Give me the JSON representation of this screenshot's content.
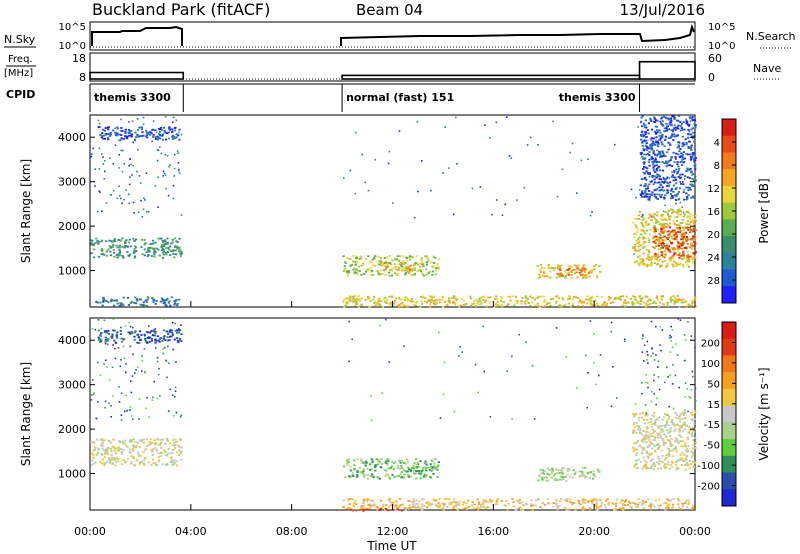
{
  "header": {
    "title": "Buckland Park (fitACF)",
    "beam": "Beam 04",
    "date": "13/Jul/2016"
  },
  "param_panels": {
    "nsky_label": "N.Sky",
    "nsearch_label": "N.Search",
    "nsky_ticks": [
      "10^5",
      "10^0"
    ],
    "freq_label_1": "Freq.",
    "freq_label_2": "[MHz]",
    "freq_ticks": [
      "18",
      "8"
    ],
    "nave_label": "Nave",
    "nave_ticks": [
      "60",
      "0"
    ],
    "cpid_label": "CPID",
    "cpid_segments": [
      {
        "start": 0.0,
        "end": 3.7,
        "name": "themis 3300"
      },
      {
        "start": 10.0,
        "end": 21.8,
        "name": "normal (fast) 151"
      },
      {
        "start": 21.8,
        "end": 24.0,
        "name": "themis 3300"
      }
    ],
    "freq_segments": [
      {
        "start": 0.0,
        "end": 3.7,
        "value": 10.7
      },
      {
        "start": 10.0,
        "end": 21.8,
        "value": 9.5
      },
      {
        "start": 21.8,
        "end": 24.0,
        "value": 15.2
      }
    ]
  },
  "chart_data": [
    {
      "type": "heatmap",
      "name": "power",
      "xlabel": "",
      "ylabel": "Slant Range [km]",
      "xlim": [
        0,
        24
      ],
      "ylim": [
        180,
        4500
      ],
      "yticks": [
        1000,
        2000,
        3000,
        4000
      ],
      "colorbar": {
        "label": "Power [dB]",
        "range": [
          0,
          32
        ],
        "ticks": [
          "4",
          "8",
          "12",
          "16",
          "20",
          "24",
          "28"
        ],
        "colors": [
          "#1e1eff",
          "#1e5ad2",
          "#2f7f9e",
          "#3d8c6a",
          "#5aae4f",
          "#9ccb3a",
          "#e8d63c",
          "#f5a623",
          "#f07a1c",
          "#e84a18",
          "#d81e14"
        ]
      },
      "blobs": [
        {
          "t0": 0.0,
          "t1": 3.6,
          "r0": 1300,
          "r1": 1750,
          "c": 3
        },
        {
          "t0": 0.3,
          "t1": 3.6,
          "r0": 3950,
          "r1": 4250,
          "c": 1
        },
        {
          "t0": 0.2,
          "t1": 3.6,
          "r0": 220,
          "r1": 420,
          "c": 2
        },
        {
          "t0": 10.0,
          "t1": 13.8,
          "r0": 900,
          "r1": 1350,
          "c": 5
        },
        {
          "t0": 11.5,
          "t1": 13.0,
          "r0": 1000,
          "r1": 1200,
          "c": 7
        },
        {
          "t0": 17.7,
          "t1": 20.2,
          "r0": 850,
          "r1": 1150,
          "c": 6
        },
        {
          "t0": 18.5,
          "t1": 19.8,
          "r0": 900,
          "r1": 1080,
          "c": 8
        },
        {
          "t0": 21.5,
          "t1": 24.0,
          "r0": 1100,
          "r1": 2400,
          "c": 6
        },
        {
          "t0": 22.3,
          "t1": 24.0,
          "r0": 1300,
          "r1": 2000,
          "c": 9
        },
        {
          "t0": 10.0,
          "t1": 24.0,
          "r0": 200,
          "r1": 450,
          "c": 6
        },
        {
          "t0": 21.8,
          "t1": 24.0,
          "r0": 2600,
          "r1": 4500,
          "c": 1
        }
      ]
    },
    {
      "type": "heatmap",
      "name": "velocity",
      "xlabel": "Time UT",
      "ylabel": "Slant Range [km]",
      "xlim": [
        0,
        24
      ],
      "ylim": [
        180,
        4500
      ],
      "yticks": [
        1000,
        2000,
        3000,
        4000
      ],
      "xticks": [
        "00:00",
        "04:00",
        "08:00",
        "12:00",
        "16:00",
        "20:00",
        "00:00"
      ],
      "colorbar": {
        "label": "Velocity [m s⁻¹]",
        "range": [
          -250,
          250
        ],
        "ticks": [
          "200",
          "100",
          "50",
          "15",
          "-15",
          "-50",
          "-100",
          "-200"
        ],
        "colors": [
          "#1e28d2",
          "#2850aa",
          "#2f8f5a",
          "#5fcf3f",
          "#a8d28a",
          "#c8c8c8",
          "#f3c840",
          "#f5a020",
          "#f07818",
          "#e03a14",
          "#d81e14"
        ]
      },
      "blobs": [
        {
          "t0": 0.0,
          "t1": 3.6,
          "r0": 1200,
          "r1": 1800,
          "c": 5
        },
        {
          "t0": 0.3,
          "t1": 3.6,
          "r0": 3950,
          "r1": 4250,
          "c": 1
        },
        {
          "t0": 10.0,
          "t1": 13.8,
          "r0": 900,
          "r1": 1350,
          "c": 3
        },
        {
          "t0": 17.7,
          "t1": 20.2,
          "r0": 850,
          "r1": 1150,
          "c": 4
        },
        {
          "t0": 21.5,
          "t1": 24.0,
          "r0": 1100,
          "r1": 2400,
          "c": 5
        },
        {
          "t0": 10.0,
          "t1": 24.0,
          "r0": 200,
          "r1": 450,
          "c": 6
        },
        {
          "t0": 10.0,
          "t1": 12.5,
          "r0": 180,
          "r1": 230,
          "c": 10
        }
      ]
    }
  ]
}
